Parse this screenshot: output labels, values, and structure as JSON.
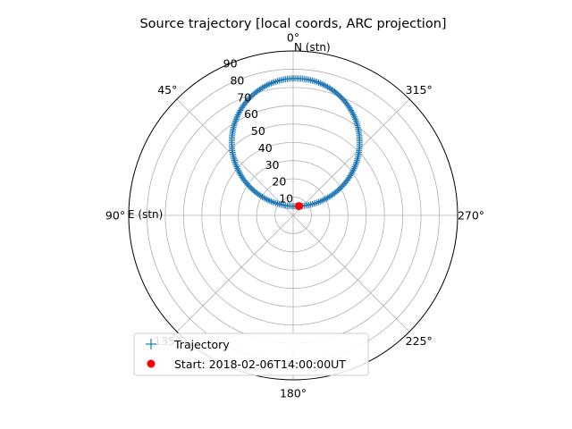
{
  "chart_data": {
    "type": "scatter",
    "projection": "polar",
    "title": "Source trajectory [local coords, ARC projection]",
    "theta_zero_location": "top",
    "theta_direction": "counterclockwise",
    "angle_ticks": [
      "0°",
      "45°",
      "90°",
      "135°",
      "180°",
      "225°",
      "270°",
      "315°"
    ],
    "radial_ticks": [
      "10",
      "20",
      "30",
      "40",
      "50",
      "60",
      "70",
      "80",
      "90"
    ],
    "radial_tick_values": [
      10,
      20,
      30,
      40,
      50,
      60,
      70,
      80,
      90
    ],
    "rlim": [
      0,
      90
    ],
    "axis_labels": {
      "north": "N (stn)",
      "east": "E (stn)"
    },
    "grid": true,
    "colors": {
      "trajectory": "#1f77b4",
      "start": "#ff0000",
      "grid": "#b0b0b0",
      "frame": "#000000"
    },
    "trajectory_circle": {
      "center_theta_deg": 358,
      "center_r": 40,
      "radius": 35,
      "points": 240
    },
    "series": [
      {
        "name": "Trajectory",
        "marker": "+",
        "color": "#1f77b4"
      },
      {
        "name": "Start: 2018-02-06T14:00:00UT",
        "marker": "o",
        "color": "#ff0000",
        "points": [
          {
            "theta_deg": 328,
            "r": 6
          }
        ]
      }
    ],
    "legend_placement": "lower-center"
  }
}
